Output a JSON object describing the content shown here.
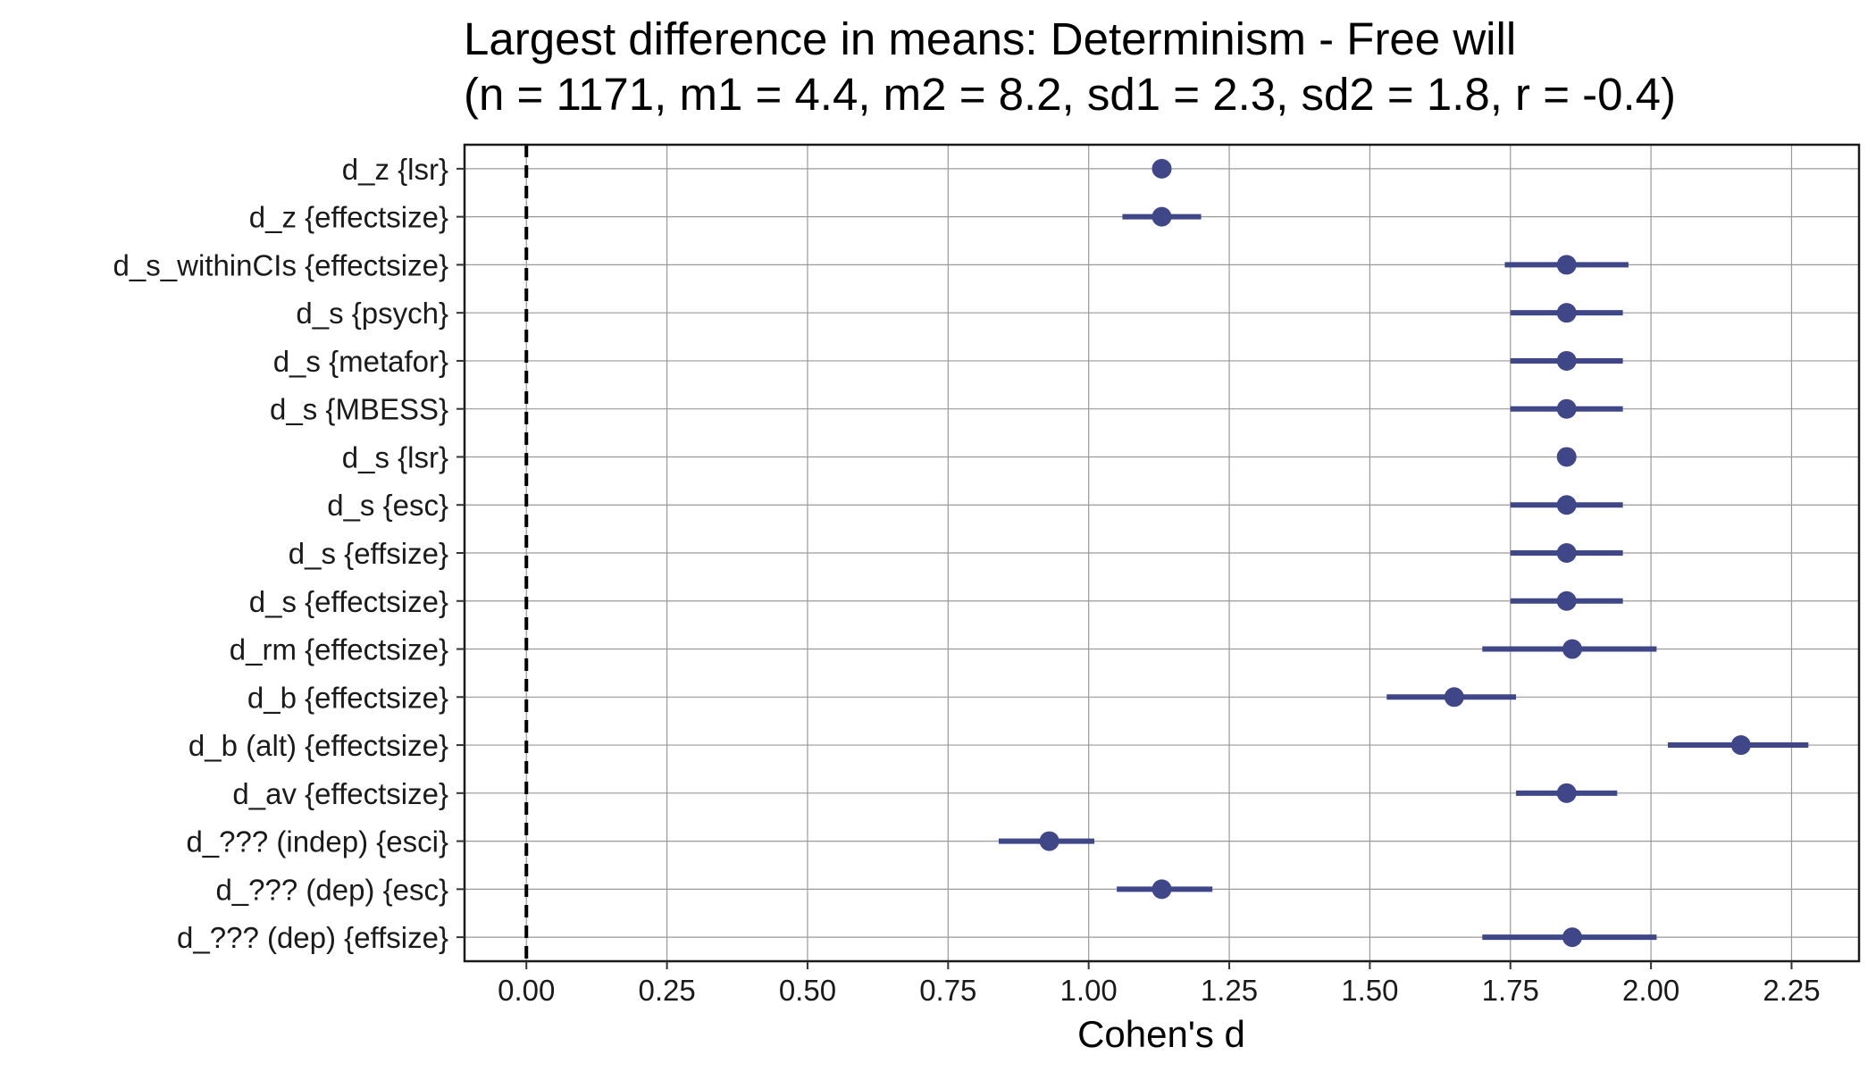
{
  "chart_data": {
    "type": "scatter",
    "title_line1": "Largest difference in means: Determinism - Free will",
    "title_line2": "(n = 1171, m1 = 4.4, m2 = 8.2, sd1 = 2.3, sd2 = 1.8, r = -0.4)",
    "xlabel": "Cohen's d",
    "ylabel": "",
    "xlim": [
      -0.11,
      2.37
    ],
    "xticks": [
      "0.00",
      "0.25",
      "0.50",
      "0.75",
      "1.00",
      "1.25",
      "1.50",
      "1.75",
      "2.00",
      "2.25"
    ],
    "xtick_values": [
      0,
      0.25,
      0.5,
      0.75,
      1.0,
      1.25,
      1.5,
      1.75,
      2.0,
      2.25
    ],
    "reference_line_x": 0,
    "grid": true,
    "point_color": "#3f4788",
    "categories": [
      "d_z {lsr}",
      "d_z {effectsize}",
      "d_s_withinCIs {effectsize}",
      "d_s {psych}",
      "d_s {metafor}",
      "d_s {MBESS}",
      "d_s {lsr}",
      "d_s {esc}",
      "d_s {effsize}",
      "d_s {effectsize}",
      "d_rm {effectsize}",
      "d_b {effectsize}",
      "d_b (alt) {effectsize}",
      "d_av {effectsize}",
      "d_??? (indep) {esci}",
      "d_??? (dep) {esc}",
      "d_??? (dep) {effsize}"
    ],
    "estimates": [
      1.13,
      1.13,
      1.85,
      1.85,
      1.85,
      1.85,
      1.85,
      1.85,
      1.85,
      1.85,
      1.86,
      1.65,
      2.16,
      1.85,
      0.93,
      1.13,
      1.86
    ],
    "ci_lower": [
      null,
      1.06,
      1.74,
      1.75,
      1.75,
      1.75,
      null,
      1.75,
      1.75,
      1.75,
      1.7,
      1.53,
      2.03,
      1.76,
      0.84,
      1.05,
      1.7
    ],
    "ci_upper": [
      null,
      1.2,
      1.96,
      1.95,
      1.95,
      1.95,
      null,
      1.95,
      1.95,
      1.95,
      2.01,
      1.76,
      2.28,
      1.94,
      1.01,
      1.22,
      2.01
    ]
  }
}
